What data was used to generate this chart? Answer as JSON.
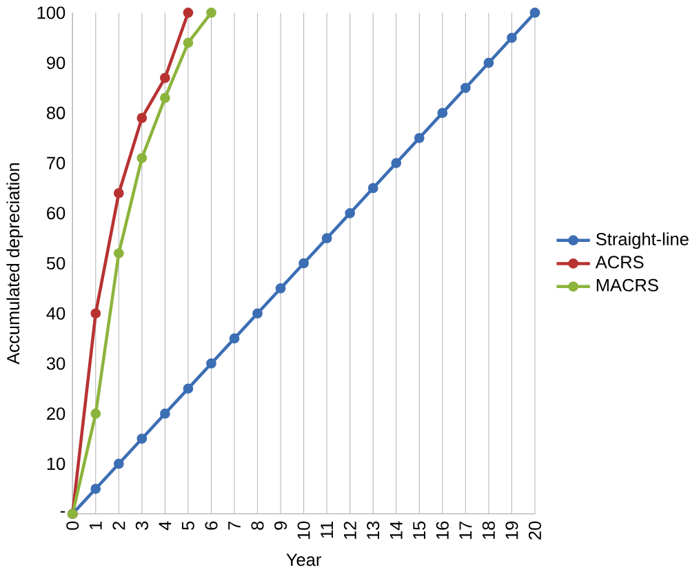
{
  "chart_data": {
    "type": "line",
    "xlabel": "Year",
    "ylabel": "Accumulated depreciation",
    "xlim": [
      0,
      20
    ],
    "ylim": [
      0,
      100
    ],
    "xticks": [
      0,
      1,
      2,
      3,
      4,
      5,
      6,
      7,
      8,
      9,
      10,
      11,
      12,
      13,
      14,
      15,
      16,
      17,
      18,
      19,
      20
    ],
    "yticks": [
      {
        "value": 0,
        "label": "-"
      },
      10,
      20,
      30,
      40,
      50,
      60,
      70,
      80,
      90,
      100
    ],
    "grid": "x",
    "legend": "right",
    "marker": "circle",
    "line_style": "solid",
    "series": [
      {
        "name": "Straight-line",
        "color": "#3c6eb4",
        "x": [
          0,
          1,
          2,
          3,
          4,
          5,
          6,
          7,
          8,
          9,
          10,
          11,
          12,
          13,
          14,
          15,
          16,
          17,
          18,
          19,
          20
        ],
        "values": [
          0,
          5,
          10,
          15,
          20,
          25,
          30,
          35,
          40,
          45,
          50,
          55,
          60,
          65,
          70,
          75,
          80,
          85,
          90,
          95,
          100
        ]
      },
      {
        "name": "ACRS",
        "color": "#b83232",
        "x": [
          0,
          1,
          2,
          3,
          4,
          5
        ],
        "values": [
          0,
          40,
          64,
          79,
          87,
          100
        ]
      },
      {
        "name": "MACRS",
        "color": "#8cb43c",
        "x": [
          0,
          1,
          2,
          3,
          4,
          5,
          6
        ],
        "values": [
          0,
          20,
          52,
          71,
          83,
          94,
          100
        ]
      }
    ]
  }
}
